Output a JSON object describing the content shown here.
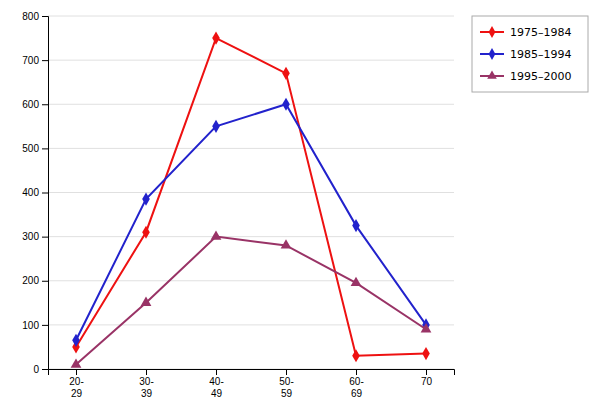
{
  "chart_data": {
    "type": "line",
    "categories": [
      "20-\n29",
      "30-\n39",
      "40-\n49",
      "50-\n59",
      "60-\n69",
      "70"
    ],
    "series": [
      {
        "name": "1975–1984",
        "color": "#ee1111",
        "marker": "diamond",
        "values": [
          50,
          310,
          750,
          670,
          30,
          35
        ]
      },
      {
        "name": "1985–1994",
        "color": "#2222cc",
        "marker": "diamond",
        "values": [
          65,
          385,
          550,
          600,
          325,
          100
        ]
      },
      {
        "name": "1995–2000",
        "color": "#993366",
        "marker": "triangle",
        "values": [
          10,
          150,
          300,
          280,
          195,
          90
        ]
      }
    ],
    "ylim": [
      0,
      800
    ],
    "yticks": [
      0,
      100,
      200,
      300,
      400,
      500,
      600,
      700,
      800
    ],
    "grid": true,
    "legend": "right"
  }
}
